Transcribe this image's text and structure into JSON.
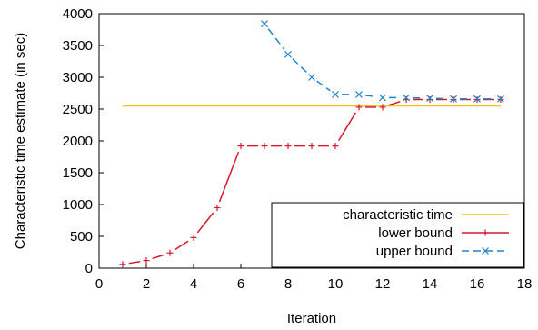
{
  "chart_data": {
    "type": "line",
    "xlabel": "Iteration",
    "ylabel": "Characteristic time estimate (in sec)",
    "xlim": [
      0,
      18
    ],
    "ylim": [
      0,
      4000
    ],
    "xticks": [
      "0",
      "2",
      "4",
      "6",
      "8",
      "10",
      "12",
      "14",
      "16",
      "18"
    ],
    "yticks": [
      "0",
      "500",
      "1000",
      "1500",
      "2000",
      "2500",
      "3000",
      "3500",
      "4000"
    ],
    "grid": false,
    "legend_position": "bottom-right",
    "series": [
      {
        "name": "characteristic time",
        "color": "#f2c21b",
        "style": "solid",
        "marker": "none",
        "x": [
          1,
          17
        ],
        "y": [
          2550,
          2550
        ]
      },
      {
        "name": "lower bound",
        "color": "#d7192c",
        "style": "solid",
        "marker": "plus",
        "x": [
          1,
          2,
          3,
          4,
          5,
          6,
          7,
          8,
          9,
          10,
          11,
          12,
          13,
          14,
          15,
          16,
          17
        ],
        "y": [
          60,
          120,
          240,
          480,
          950,
          1920,
          1920,
          1920,
          1920,
          1920,
          2530,
          2530,
          2650,
          2650,
          2650,
          2650,
          2650
        ]
      },
      {
        "name": "upper bound",
        "color": "#1f86c8",
        "style": "dashed",
        "marker": "x",
        "x": [
          7,
          8,
          9,
          10,
          11,
          12,
          13,
          14,
          15,
          16,
          17
        ],
        "y": [
          3840,
          3360,
          3000,
          2730,
          2730,
          2680,
          2680,
          2670,
          2660,
          2660,
          2660
        ]
      }
    ]
  }
}
